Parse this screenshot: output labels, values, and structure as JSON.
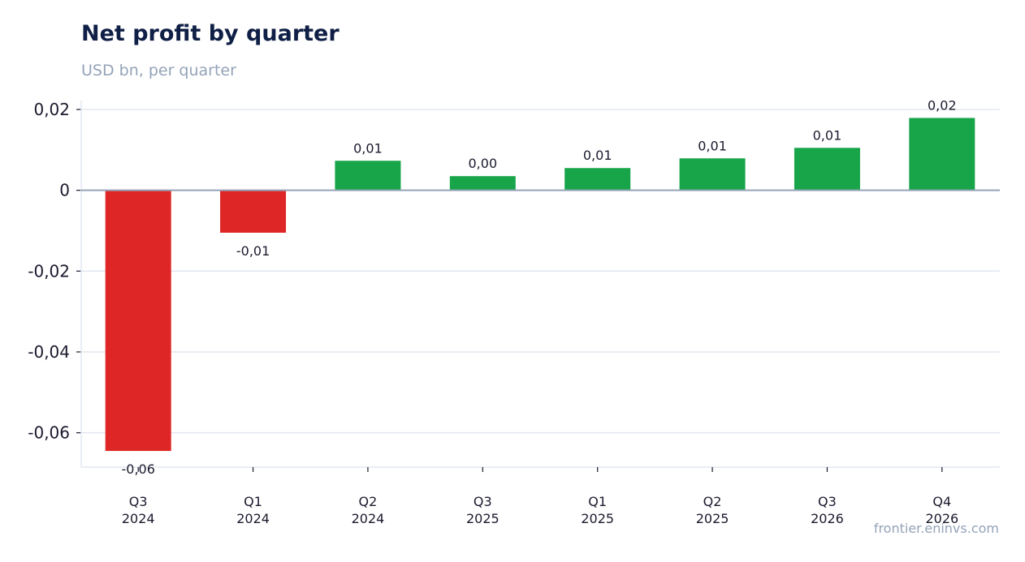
{
  "header": {
    "title": "Net profit by quarter",
    "subtitle": "USD bn, per quarter"
  },
  "footer": {
    "source": "frontier.eninvs.com"
  },
  "colors": {
    "positive": "#18a54a",
    "negative": "#df2626",
    "grid": "#e2e8f0",
    "zero_line": "#94a3b8"
  },
  "chart_data": {
    "type": "bar",
    "title": "Net profit by quarter",
    "subtitle": "USD bn, per quarter",
    "categories": [
      [
        "Q3",
        "2024"
      ],
      [
        "Q1",
        "2024"
      ],
      [
        "Q2",
        "2024"
      ],
      [
        "Q3",
        "2025"
      ],
      [
        "Q1",
        "2025"
      ],
      [
        "Q2",
        "2025"
      ],
      [
        "Q3",
        "2026"
      ],
      [
        "Q4",
        "2026"
      ]
    ],
    "values": [
      -0.0645,
      -0.0105,
      0.0073,
      0.0035,
      0.0055,
      0.0079,
      0.0105,
      0.0179
    ],
    "data_labels": [
      "-0,06",
      "-0,01",
      "0,01",
      "0,00",
      "0,01",
      "0,01",
      "0,01",
      "0,02"
    ],
    "ylim": [
      -0.0685,
      0.0222
    ],
    "yticks": [
      0.02,
      0,
      -0.02,
      -0.04,
      -0.06
    ],
    "ytick_labels": [
      "0,02",
      "0",
      "-0,02",
      "-0,04",
      "-0,06"
    ],
    "grid": true,
    "legend": "none"
  }
}
